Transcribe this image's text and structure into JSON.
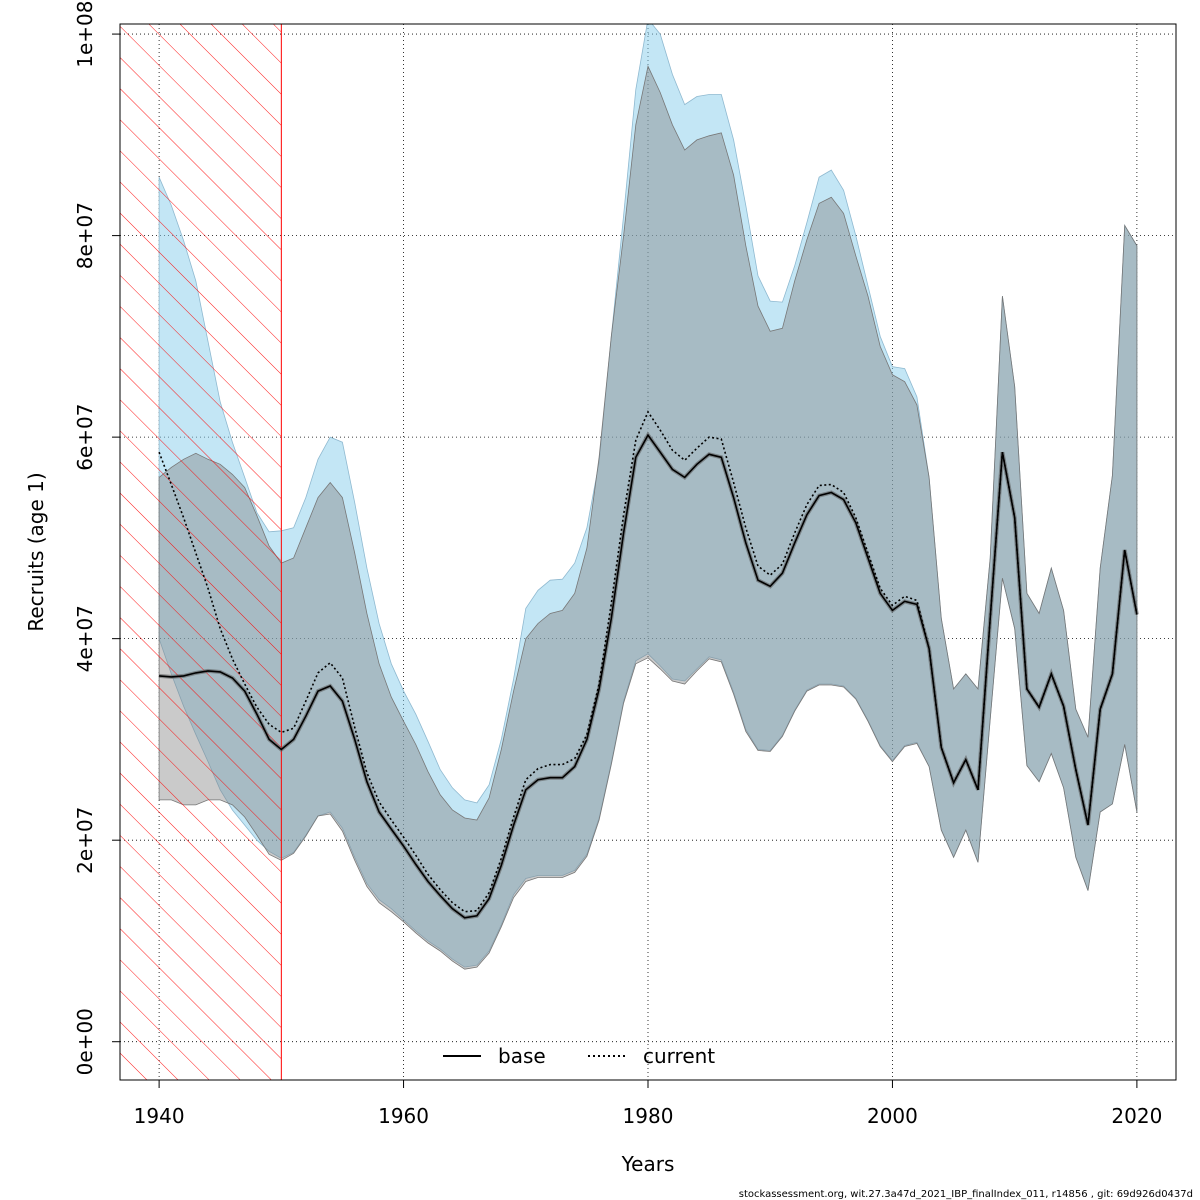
{
  "chart_data": {
    "type": "area",
    "xlabel": "Years",
    "ylabel": "Recruits (age 1)",
    "xlim": [
      1936.8,
      2023.2
    ],
    "ylim": [
      -3800000,
      101000000
    ],
    "x_ticks": [
      1940,
      1960,
      1980,
      2000,
      2020
    ],
    "x_tick_labels": [
      "1940",
      "1960",
      "1980",
      "2000",
      "2020"
    ],
    "y_ticks": [
      0,
      20000000,
      40000000,
      60000000,
      80000000,
      100000000
    ],
    "y_tick_labels": [
      "0e+00",
      "2e+07",
      "4e+07",
      "6e+07",
      "8e+07",
      "1e+08"
    ],
    "grid": true,
    "legend_placement": "bottom",
    "hatched_region": {
      "x_from": 1936.8,
      "x_to": 1950,
      "color": "#ff0000"
    },
    "years": [
      1940,
      1941,
      1942,
      1943,
      1944,
      1945,
      1946,
      1947,
      1948,
      1949,
      1950,
      1951,
      1952,
      1953,
      1954,
      1955,
      1956,
      1957,
      1958,
      1959,
      1960,
      1961,
      1962,
      1963,
      1964,
      1965,
      1966,
      1967,
      1968,
      1969,
      1970,
      1971,
      1972,
      1973,
      1974,
      1975,
      1976,
      1977,
      1978,
      1979,
      1980,
      1981,
      1982,
      1983,
      1984,
      1985,
      1986,
      1987,
      1988,
      1989,
      1990,
      1991,
      1992,
      1993,
      1994,
      1995,
      1996,
      1997,
      1998,
      1999,
      2000,
      2001,
      2002,
      2003,
      2004,
      2005,
      2006,
      2007,
      2008,
      2009,
      2010,
      2011,
      2012,
      2013,
      2014,
      2015,
      2016,
      2017,
      2018,
      2019,
      2020
    ],
    "series": [
      {
        "name": "base",
        "color": "#000000",
        "line_style": "solid",
        "band_color": "#808080",
        "values": [
          36.3,
          36.2,
          36.3,
          36.6,
          36.8,
          36.7,
          36.1,
          34.8,
          32.5,
          30.0,
          29.0,
          30.0,
          32.3,
          34.8,
          35.3,
          33.8,
          30.0,
          25.8,
          22.8,
          21.1,
          19.4,
          17.6,
          15.9,
          14.5,
          13.2,
          12.3,
          12.5,
          14.2,
          17.5,
          21.5,
          25.0,
          26.0,
          26.2,
          26.2,
          27.3,
          30.0,
          35.0,
          42.0,
          50.5,
          58.0,
          60.2,
          58.5,
          56.8,
          56.0,
          57.3,
          58.3,
          58.0,
          54.0,
          49.5,
          45.8,
          45.2,
          46.5,
          49.5,
          52.3,
          54.2,
          54.5,
          53.8,
          51.5,
          48.0,
          44.5,
          42.8,
          43.7,
          43.4,
          39.0,
          29.2,
          25.7,
          28.0,
          25.0,
          42.0,
          58.5,
          52.0,
          35.0,
          33.2,
          36.5,
          33.3,
          27.0,
          21.5,
          33.0,
          36.5,
          48.8,
          42.4
        ],
        "lower": [
          24.0,
          24.0,
          23.5,
          23.5,
          24.0,
          24.0,
          23.5,
          22.3,
          20.5,
          18.6,
          18.0,
          18.7,
          20.4,
          22.4,
          22.6,
          20.9,
          18.0,
          15.4,
          13.8,
          12.9,
          11.9,
          10.8,
          9.8,
          9.0,
          8.0,
          7.2,
          7.4,
          8.8,
          11.4,
          14.3,
          15.9,
          16.3,
          16.3,
          16.3,
          16.8,
          18.4,
          22.0,
          27.5,
          33.6,
          37.5,
          38.1,
          37.0,
          35.8,
          35.5,
          36.8,
          38.0,
          37.7,
          34.5,
          30.8,
          28.9,
          28.8,
          30.3,
          32.8,
          34.8,
          35.4,
          35.4,
          35.2,
          34.0,
          31.8,
          29.3,
          27.8,
          29.3,
          29.6,
          27.3,
          21.0,
          18.3,
          21.0,
          17.8,
          32.0,
          46.0,
          41.0,
          27.4,
          25.8,
          28.6,
          25.2,
          18.3,
          15.0,
          22.8,
          23.6,
          29.5,
          22.8
        ],
        "upper": [
          56.0,
          57.0,
          57.8,
          58.4,
          57.8,
          57.3,
          56.3,
          55.0,
          52.2,
          49.2,
          47.5,
          48.0,
          51.0,
          54.0,
          55.5,
          54.0,
          48.5,
          42.5,
          37.5,
          34.2,
          31.8,
          29.5,
          26.8,
          24.5,
          23.0,
          22.2,
          22.0,
          24.2,
          29.0,
          34.8,
          40.0,
          41.5,
          42.5,
          42.8,
          44.5,
          49.0,
          58.0,
          70.0,
          80.0,
          91.0,
          96.8,
          94.2,
          91.0,
          88.5,
          89.5,
          89.9,
          90.2,
          86.0,
          79.0,
          73.0,
          70.5,
          70.8,
          75.5,
          79.6,
          83.2,
          83.8,
          82.2,
          78.0,
          74.0,
          69.0,
          66.2,
          65.5,
          63.2,
          56.0,
          42.0,
          35.0,
          36.5,
          35.0,
          48.0,
          74.0,
          65.0,
          44.5,
          42.5,
          47.0,
          42.8,
          33.0,
          30.2,
          47.0,
          56.2,
          81.0,
          79.0
        ]
      },
      {
        "name": "current",
        "color": "#000000",
        "line_style": "dotted",
        "band_color": "#87ceeb",
        "values": [
          58.5,
          55.3,
          52.0,
          48.5,
          45.0,
          41.0,
          38.0,
          35.5,
          33.2,
          31.5,
          30.7,
          31.1,
          33.8,
          36.6,
          37.6,
          36.1,
          31.2,
          26.7,
          23.8,
          22.0,
          20.3,
          18.5,
          16.6,
          15.1,
          13.8,
          12.9,
          13.0,
          14.8,
          18.2,
          22.3,
          26.0,
          27.1,
          27.5,
          27.5,
          28.1,
          30.5,
          35.5,
          43.5,
          52.3,
          59.7,
          62.5,
          60.7,
          58.7,
          57.7,
          58.9,
          60.0,
          59.8,
          55.5,
          51.0,
          47.2,
          46.3,
          47.4,
          50.5,
          53.3,
          55.2,
          55.3,
          54.5,
          52.0,
          48.5,
          45.0,
          43.3,
          44.2,
          43.8,
          39.0,
          29.2,
          25.7,
          28.0,
          25.0,
          42.0,
          58.5,
          52.0,
          35.0,
          33.2,
          36.5,
          33.3,
          27.0,
          21.5,
          33.0,
          36.5,
          48.8,
          42.4
        ],
        "lower": [
          40.0,
          36.5,
          33.3,
          30.5,
          27.8,
          25.0,
          23.0,
          21.5,
          20.0,
          18.9,
          18.2,
          18.8,
          20.5,
          22.4,
          22.8,
          21.2,
          18.3,
          15.7,
          14.1,
          13.2,
          12.1,
          11.0,
          10.0,
          9.2,
          8.2,
          7.4,
          7.6,
          9.0,
          11.6,
          14.6,
          16.2,
          16.5,
          16.5,
          16.5,
          17.0,
          18.6,
          22.2,
          27.7,
          33.8,
          37.8,
          38.5,
          37.3,
          36.0,
          35.8,
          37.0,
          38.2,
          37.9,
          34.7,
          31.0,
          29.0,
          28.9,
          30.4,
          32.9,
          34.9,
          35.5,
          35.5,
          35.3,
          34.1,
          31.9,
          29.4,
          27.9,
          29.4,
          29.7,
          27.3,
          21.0,
          18.3,
          21.0,
          17.8,
          32.0,
          46.0,
          41.0,
          27.4,
          25.8,
          28.6,
          25.2,
          18.3,
          15.0,
          22.8,
          23.6,
          29.5,
          22.8
        ],
        "upper": [
          85.8,
          83.0,
          79.5,
          75.5,
          69.5,
          63.5,
          59.5,
          56.0,
          52.5,
          50.6,
          50.7,
          51.0,
          54.0,
          57.8,
          60.0,
          59.5,
          53.5,
          47.0,
          41.5,
          37.5,
          34.8,
          32.5,
          29.8,
          27.0,
          25.2,
          24.0,
          23.7,
          25.5,
          30.0,
          36.0,
          43.0,
          44.8,
          45.8,
          45.9,
          47.5,
          51.0,
          57.5,
          70.0,
          82.0,
          94.5,
          101.5,
          100.0,
          96.0,
          93.0,
          93.8,
          94.0,
          94.0,
          89.5,
          83.0,
          76.0,
          73.5,
          73.4,
          77.0,
          81.3,
          85.8,
          86.5,
          84.5,
          80.0,
          75.0,
          70.0,
          67.0,
          66.8,
          64.0,
          56.0,
          42.0,
          35.0,
          36.5,
          35.0,
          48.0,
          74.0,
          65.0,
          44.5,
          42.5,
          47.0,
          42.8,
          33.0,
          30.2,
          47.0,
          56.2,
          81.0,
          79.0
        ]
      }
    ],
    "value_unit_multiplier": 1000000
  },
  "legend": {
    "base_label": "base",
    "current_label": "current"
  },
  "axes": {
    "xlabel": "Years",
    "ylabel": "Recruits (age 1)"
  },
  "footer": {
    "text": "stockassessment.org, wit.27.3a47d_2021_IBP_finalIndex_011, r14856 , git: 69d926d0437d"
  }
}
